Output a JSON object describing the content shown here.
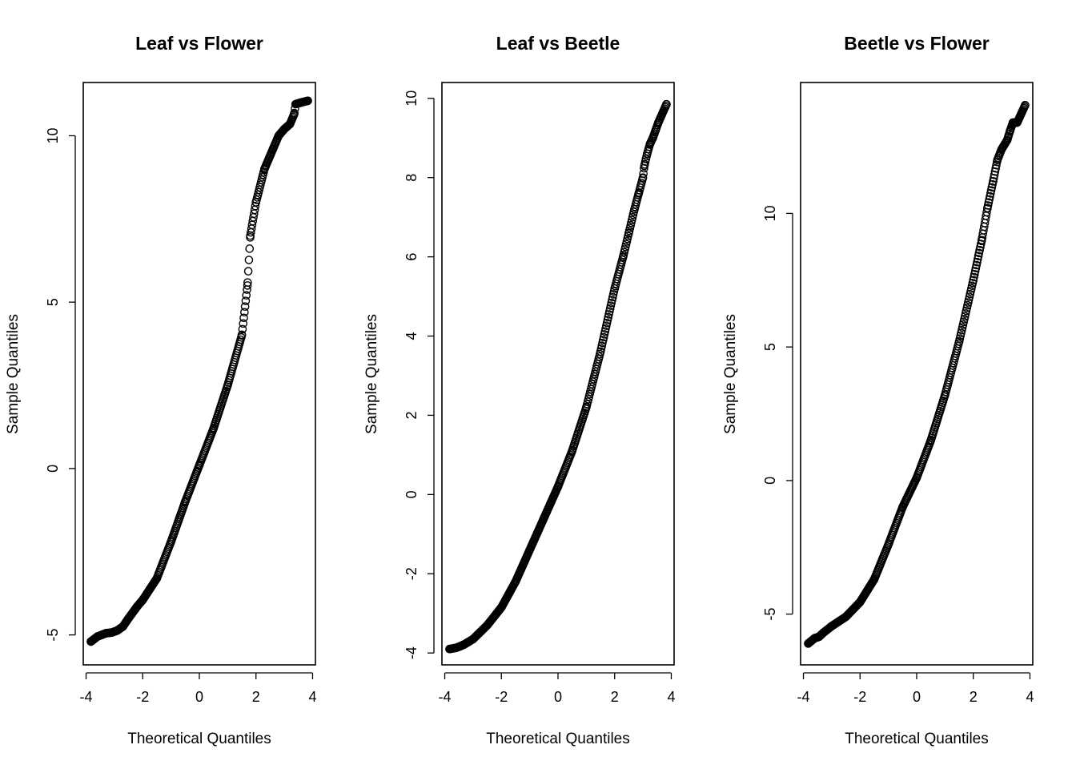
{
  "chart_data": [
    {
      "type": "scatter",
      "title": "Leaf vs Flower",
      "xlabel": "Theoretical Quantiles",
      "ylabel": "Sample Quantiles",
      "xlim": [
        -4.1,
        4.1
      ],
      "ylim": [
        -5.9,
        11.6
      ],
      "xticks": [
        -4,
        -2,
        0,
        2,
        4
      ],
      "yticks": [
        -5,
        0,
        5,
        10
      ],
      "grid": false,
      "quantile_points": [
        [
          -3.83,
          -5.2
        ],
        [
          -3.6,
          -5.05
        ],
        [
          -3.45,
          -5.0
        ],
        [
          -3.3,
          -4.95
        ],
        [
          -3.1,
          -4.93
        ],
        [
          -2.9,
          -4.87
        ],
        [
          -2.7,
          -4.75
        ],
        [
          -2.5,
          -4.5
        ],
        [
          -2.2,
          -4.15
        ],
        [
          -2.0,
          -3.95
        ],
        [
          -1.5,
          -3.3
        ],
        [
          -1.0,
          -2.2
        ],
        [
          -0.5,
          -1.0
        ],
        [
          0,
          0.1
        ],
        [
          0.5,
          1.2
        ],
        [
          1.0,
          2.5
        ],
        [
          1.5,
          4.0
        ],
        [
          1.7,
          5.5
        ],
        [
          1.8,
          7.0
        ],
        [
          2.0,
          8.0
        ],
        [
          2.3,
          9.0
        ],
        [
          2.6,
          9.6
        ],
        [
          2.8,
          10.0
        ],
        [
          3.0,
          10.2
        ],
        [
          3.2,
          10.35
        ],
        [
          3.35,
          10.65
        ],
        [
          3.4,
          10.95
        ],
        [
          3.6,
          11.0
        ],
        [
          3.83,
          11.05
        ]
      ]
    },
    {
      "type": "scatter",
      "title": "Leaf vs Beetle",
      "xlabel": "Theoretical Quantiles",
      "ylabel": "Sample Quantiles",
      "xlim": [
        -4.1,
        4.1
      ],
      "ylim": [
        -4.3,
        10.4
      ],
      "xticks": [
        -4,
        -2,
        0,
        2,
        4
      ],
      "yticks": [
        -4,
        -2,
        0,
        2,
        4,
        6,
        8,
        10
      ],
      "grid": false,
      "quantile_points": [
        [
          -3.83,
          -3.9
        ],
        [
          -3.6,
          -3.87
        ],
        [
          -3.45,
          -3.83
        ],
        [
          -3.3,
          -3.78
        ],
        [
          -3.0,
          -3.65
        ],
        [
          -2.5,
          -3.3
        ],
        [
          -2.0,
          -2.85
        ],
        [
          -1.5,
          -2.2
        ],
        [
          -1.0,
          -1.4
        ],
        [
          -0.5,
          -0.6
        ],
        [
          0,
          0.2
        ],
        [
          0.5,
          1.1
        ],
        [
          1.0,
          2.2
        ],
        [
          1.5,
          3.6
        ],
        [
          2.0,
          5.2
        ],
        [
          2.3,
          6.0
        ],
        [
          2.5,
          6.6
        ],
        [
          2.7,
          7.2
        ],
        [
          2.85,
          7.6
        ],
        [
          3.0,
          8.0
        ],
        [
          3.05,
          8.3
        ],
        [
          3.15,
          8.6
        ],
        [
          3.25,
          8.85
        ],
        [
          3.35,
          9.0
        ],
        [
          3.45,
          9.2
        ],
        [
          3.55,
          9.4
        ],
        [
          3.83,
          9.85
        ]
      ]
    },
    {
      "type": "scatter",
      "title": "Beetle vs Flower",
      "xlabel": "Theoretical Quantiles",
      "ylabel": "Sample Quantiles",
      "xlim": [
        -4.1,
        4.1
      ],
      "ylim": [
        -6.9,
        14.9
      ],
      "xticks": [
        -4,
        -2,
        0,
        2,
        4
      ],
      "yticks": [
        -5,
        0,
        5,
        10
      ],
      "grid": false,
      "quantile_points": [
        [
          -3.83,
          -6.1
        ],
        [
          -3.6,
          -5.9
        ],
        [
          -3.45,
          -5.85
        ],
        [
          -3.3,
          -5.7
        ],
        [
          -3.0,
          -5.45
        ],
        [
          -2.5,
          -5.1
        ],
        [
          -2.0,
          -4.55
        ],
        [
          -1.5,
          -3.7
        ],
        [
          -1.0,
          -2.4
        ],
        [
          -0.5,
          -1.0
        ],
        [
          0,
          0.1
        ],
        [
          0.5,
          1.5
        ],
        [
          1.0,
          3.2
        ],
        [
          1.5,
          5.2
        ],
        [
          2.0,
          7.5
        ],
        [
          2.3,
          9.0
        ],
        [
          2.5,
          10.2
        ],
        [
          2.7,
          11.2
        ],
        [
          2.85,
          12.0
        ],
        [
          3.0,
          12.4
        ],
        [
          3.2,
          12.75
        ],
        [
          3.3,
          13.1
        ],
        [
          3.4,
          13.4
        ],
        [
          3.55,
          13.4
        ],
        [
          3.83,
          14.05
        ]
      ]
    }
  ]
}
